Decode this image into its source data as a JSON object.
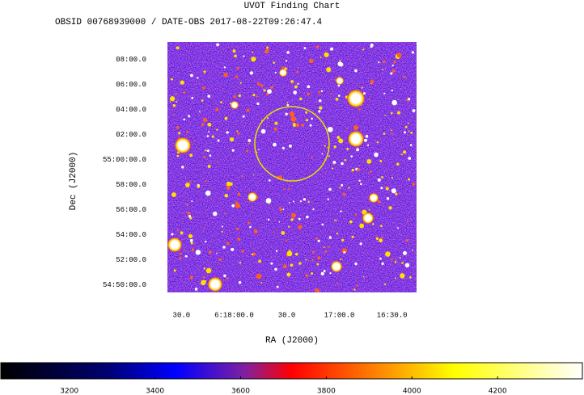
{
  "chart_data": {
    "type": "image",
    "title": "UVOT Finding Chart",
    "subtitle": "OBSID 00768939000 / DATE-OBS 2017-08-22T09:26:47.4",
    "x_label": "RA (J2000)",
    "y_label": "Dec (J2000)",
    "xlim": [
      22718,
      22576
    ],
    "xticks": [
      {
        "value": 22710,
        "label": "30.0"
      },
      {
        "value": 22680,
        "label": "6:18:00.0"
      },
      {
        "value": 22650,
        "label": "30.0"
      },
      {
        "value": 22620,
        "label": "17:00.0"
      },
      {
        "value": 22590,
        "label": "16:30.0"
      }
    ],
    "ylim": [
      3289.4,
      3309.4
    ],
    "yticks": [
      {
        "value": 3308,
        "label": "08:00.0"
      },
      {
        "value": 3306,
        "label": "06:00.0"
      },
      {
        "value": 3304,
        "label": "04:00.0"
      },
      {
        "value": 3302,
        "label": "02:00.0"
      },
      {
        "value": 3300,
        "label": "55:00:00.0"
      },
      {
        "value": 3298,
        "label": "58:00.0"
      },
      {
        "value": 3296,
        "label": "56:00.0"
      },
      {
        "value": 3294,
        "label": "54:00.0"
      },
      {
        "value": 3292,
        "label": "52:00.0"
      },
      {
        "value": 3290,
        "label": "54:50:00.0"
      }
    ],
    "colorbar": {
      "lim": [
        3040,
        4398
      ],
      "ticks": [
        3200,
        3400,
        3600,
        3800,
        4000,
        4200
      ]
    }
  }
}
